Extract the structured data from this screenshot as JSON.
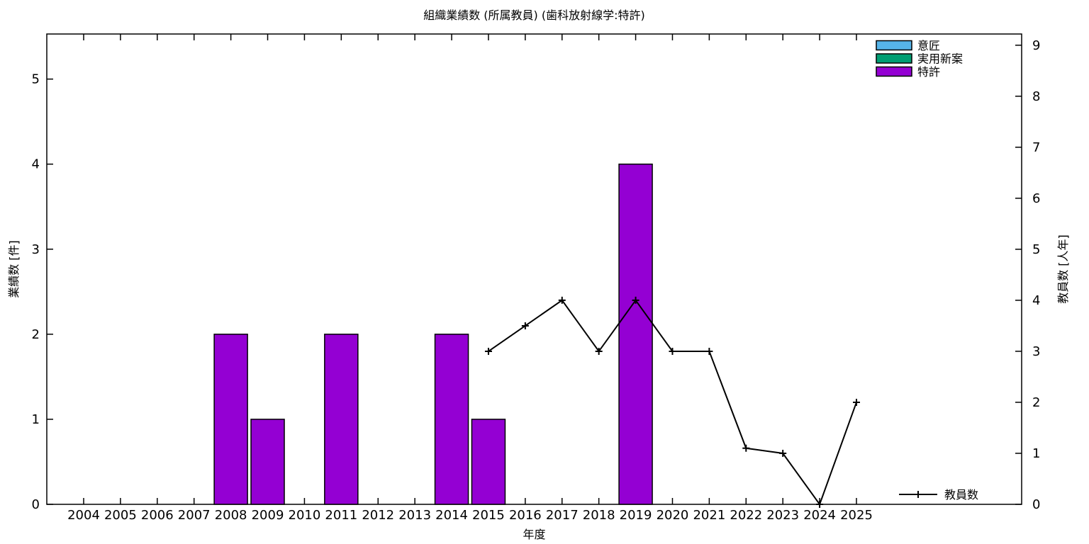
{
  "title": "組織業績数 (所属教員) (歯科放射線学:特許)",
  "colors": {
    "ishou": "#56b4e9",
    "jitsuyoushinan": "#009e73",
    "tokkyo": "#9400d3",
    "line": "#000000",
    "axis": "#000000",
    "background": "#ffffff"
  },
  "chart_data": {
    "type": "bar",
    "title": "組織業績数 (所属教員) (歯科放射線学:特許)",
    "xlabel": "年度",
    "ylabel": "業績数 [件]",
    "y2label": "教員数 [人年]",
    "categories": [
      2004,
      2005,
      2006,
      2007,
      2008,
      2009,
      2010,
      2011,
      2012,
      2013,
      2014,
      2015,
      2016,
      2017,
      2018,
      2019,
      2020,
      2021,
      2022,
      2023,
      2024,
      2025
    ],
    "y_ticks": [
      0,
      1,
      2,
      3,
      4,
      5
    ],
    "y2_ticks": [
      0,
      1,
      2,
      3,
      4,
      5,
      6,
      7,
      8,
      9
    ],
    "ylim": [
      0,
      5.53
    ],
    "y2lim": [
      0,
      9.22
    ],
    "grid": false,
    "legend_position_bars": "top-right",
    "legend_position_line": "bottom-right",
    "series": [
      {
        "name": "意匠",
        "type": "bar",
        "axis": "y1",
        "color": "#56b4e9",
        "values": [
          0,
          0,
          0,
          0,
          0,
          0,
          0,
          0,
          0,
          0,
          0,
          0,
          0,
          0,
          0,
          0,
          0,
          0,
          0,
          0,
          0,
          0
        ]
      },
      {
        "name": "実用新案",
        "type": "bar",
        "axis": "y1",
        "color": "#009e73",
        "values": [
          0,
          0,
          0,
          0,
          0,
          0,
          0,
          0,
          0,
          0,
          0,
          0,
          0,
          0,
          0,
          0,
          0,
          0,
          0,
          0,
          0,
          0
        ]
      },
      {
        "name": "特許",
        "type": "bar",
        "axis": "y1",
        "color": "#9400d3",
        "values": [
          0,
          0,
          0,
          0,
          2,
          1,
          0,
          2,
          0,
          0,
          2,
          1,
          0,
          0,
          0,
          4,
          0,
          0,
          0,
          0,
          0,
          0
        ]
      },
      {
        "name": "教員数",
        "type": "line",
        "axis": "y2",
        "color": "#000000",
        "marker": "plus",
        "x": [
          2015,
          2016,
          2017,
          2018,
          2019,
          2020,
          2021,
          2022,
          2023,
          2024,
          2025
        ],
        "values": [
          3,
          3.5,
          4,
          3,
          4,
          3,
          3,
          1.1,
          1,
          0,
          2
        ]
      }
    ]
  }
}
